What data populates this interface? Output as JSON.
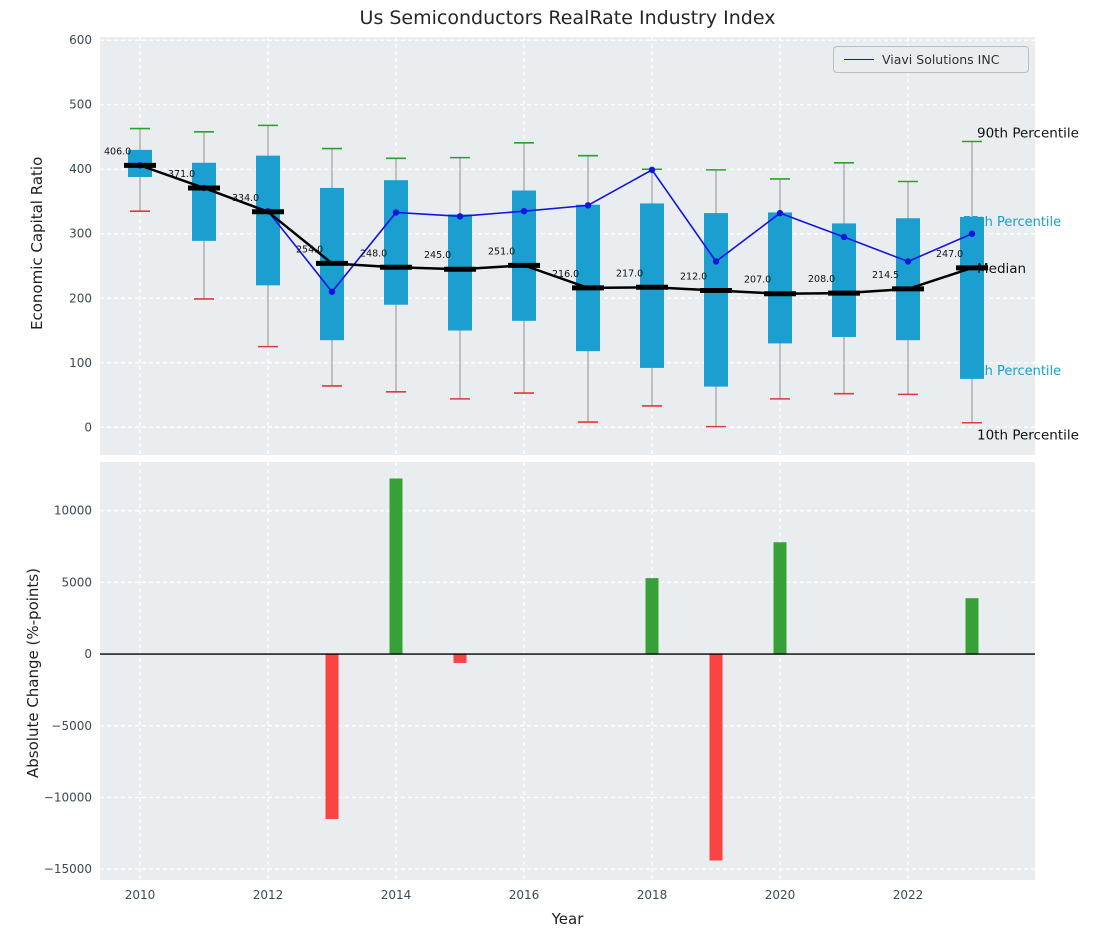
{
  "figure": {
    "background": "#ffffff",
    "plot_background": "#e9edf0"
  },
  "chart_data": [
    {
      "type": "boxplot+line",
      "title": "Us Semiconductors RealRate Industry Index",
      "ylabel": "Economic Capital Ratio",
      "ylim": [
        -43,
        605
      ],
      "yticks": [
        0,
        100,
        200,
        300,
        400,
        500,
        600
      ],
      "x": [
        2010,
        2011,
        2012,
        2013,
        2014,
        2015,
        2016,
        2017,
        2018,
        2019,
        2020,
        2021,
        2022,
        2023
      ],
      "series": [
        {
          "name": "90th Percentile",
          "mark": "cap",
          "color": "#2ca02c",
          "values": [
            463,
            458,
            468,
            432,
            417,
            418,
            441,
            421,
            400,
            399,
            385,
            410,
            381,
            443
          ]
        },
        {
          "name": "75th Percentile",
          "mark": "box-top",
          "color": "#1a9fd0",
          "values": [
            430,
            410,
            421,
            371,
            383,
            330,
            367,
            345,
            347,
            332,
            333,
            316,
            324,
            326
          ]
        },
        {
          "name": "Median",
          "mark": "dash-line",
          "color": "#000000",
          "values": [
            406,
            371,
            334,
            254,
            248,
            245,
            251,
            216,
            217,
            212,
            207,
            208,
            214.5,
            247
          ]
        },
        {
          "name": "25th Percentile",
          "mark": "box-bottom",
          "color": "#1a9fd0",
          "values": [
            388,
            289,
            220,
            135,
            190,
            150,
            165,
            118,
            92,
            63,
            130,
            140,
            135,
            75
          ]
        },
        {
          "name": "10th Percentile",
          "mark": "cap",
          "color": "#e03a3a",
          "values": [
            335,
            199,
            125,
            64,
            55,
            44,
            53,
            8,
            33,
            1,
            44,
            52,
            51,
            7
          ]
        },
        {
          "name": "Viavi Solutions INC",
          "mark": "line+marker",
          "color": "#1414e0",
          "values": [
            406,
            371,
            335,
            210,
            333,
            327,
            335,
            344,
            399,
            257,
            332,
            295,
            257,
            300
          ]
        }
      ],
      "median_labels": [
        "406.0",
        "371.0",
        "334.0",
        "254.0",
        "248.0",
        "245.0",
        "251.0",
        "216.0",
        "217.0",
        "212.0",
        "207.0",
        "208.0",
        "214.5",
        "247.0"
      ],
      "legend": {
        "label": "Viavi Solutions INC",
        "position": "upper-right"
      },
      "annotations": [
        {
          "text": "90th Percentile",
          "value": 457,
          "color": "#111111",
          "layer": "front"
        },
        {
          "text": "75th Percentile",
          "value": 318,
          "color": "#18a0c8",
          "layer": "back"
        },
        {
          "text": "Median",
          "value": 247,
          "color": "#111111",
          "layer": "front"
        },
        {
          "text": "25th Percentile",
          "value": 87,
          "color": "#18a0c8",
          "layer": "back"
        },
        {
          "text": "10th Percentile",
          "value": -11,
          "color": "#111111",
          "layer": "front"
        }
      ],
      "grid": true
    },
    {
      "type": "bar",
      "ylabel": "Absolute Change (%-points)",
      "xlabel": "Year",
      "ylim": [
        -15760,
        13400
      ],
      "yticks": [
        -15000,
        -10000,
        -5000,
        0,
        5000,
        10000
      ],
      "xticks": [
        2010,
        2012,
        2014,
        2016,
        2018,
        2020,
        2022
      ],
      "x": [
        2010,
        2011,
        2012,
        2013,
        2014,
        2015,
        2016,
        2017,
        2018,
        2019,
        2020,
        2021,
        2022,
        2023
      ],
      "values": [
        0,
        0,
        0,
        -11500,
        12250,
        -620,
        0,
        0,
        5300,
        -14400,
        7800,
        0,
        0,
        3900
      ],
      "positive_color": "#38a038",
      "negative_color": "#fa4343",
      "grid": true
    }
  ]
}
